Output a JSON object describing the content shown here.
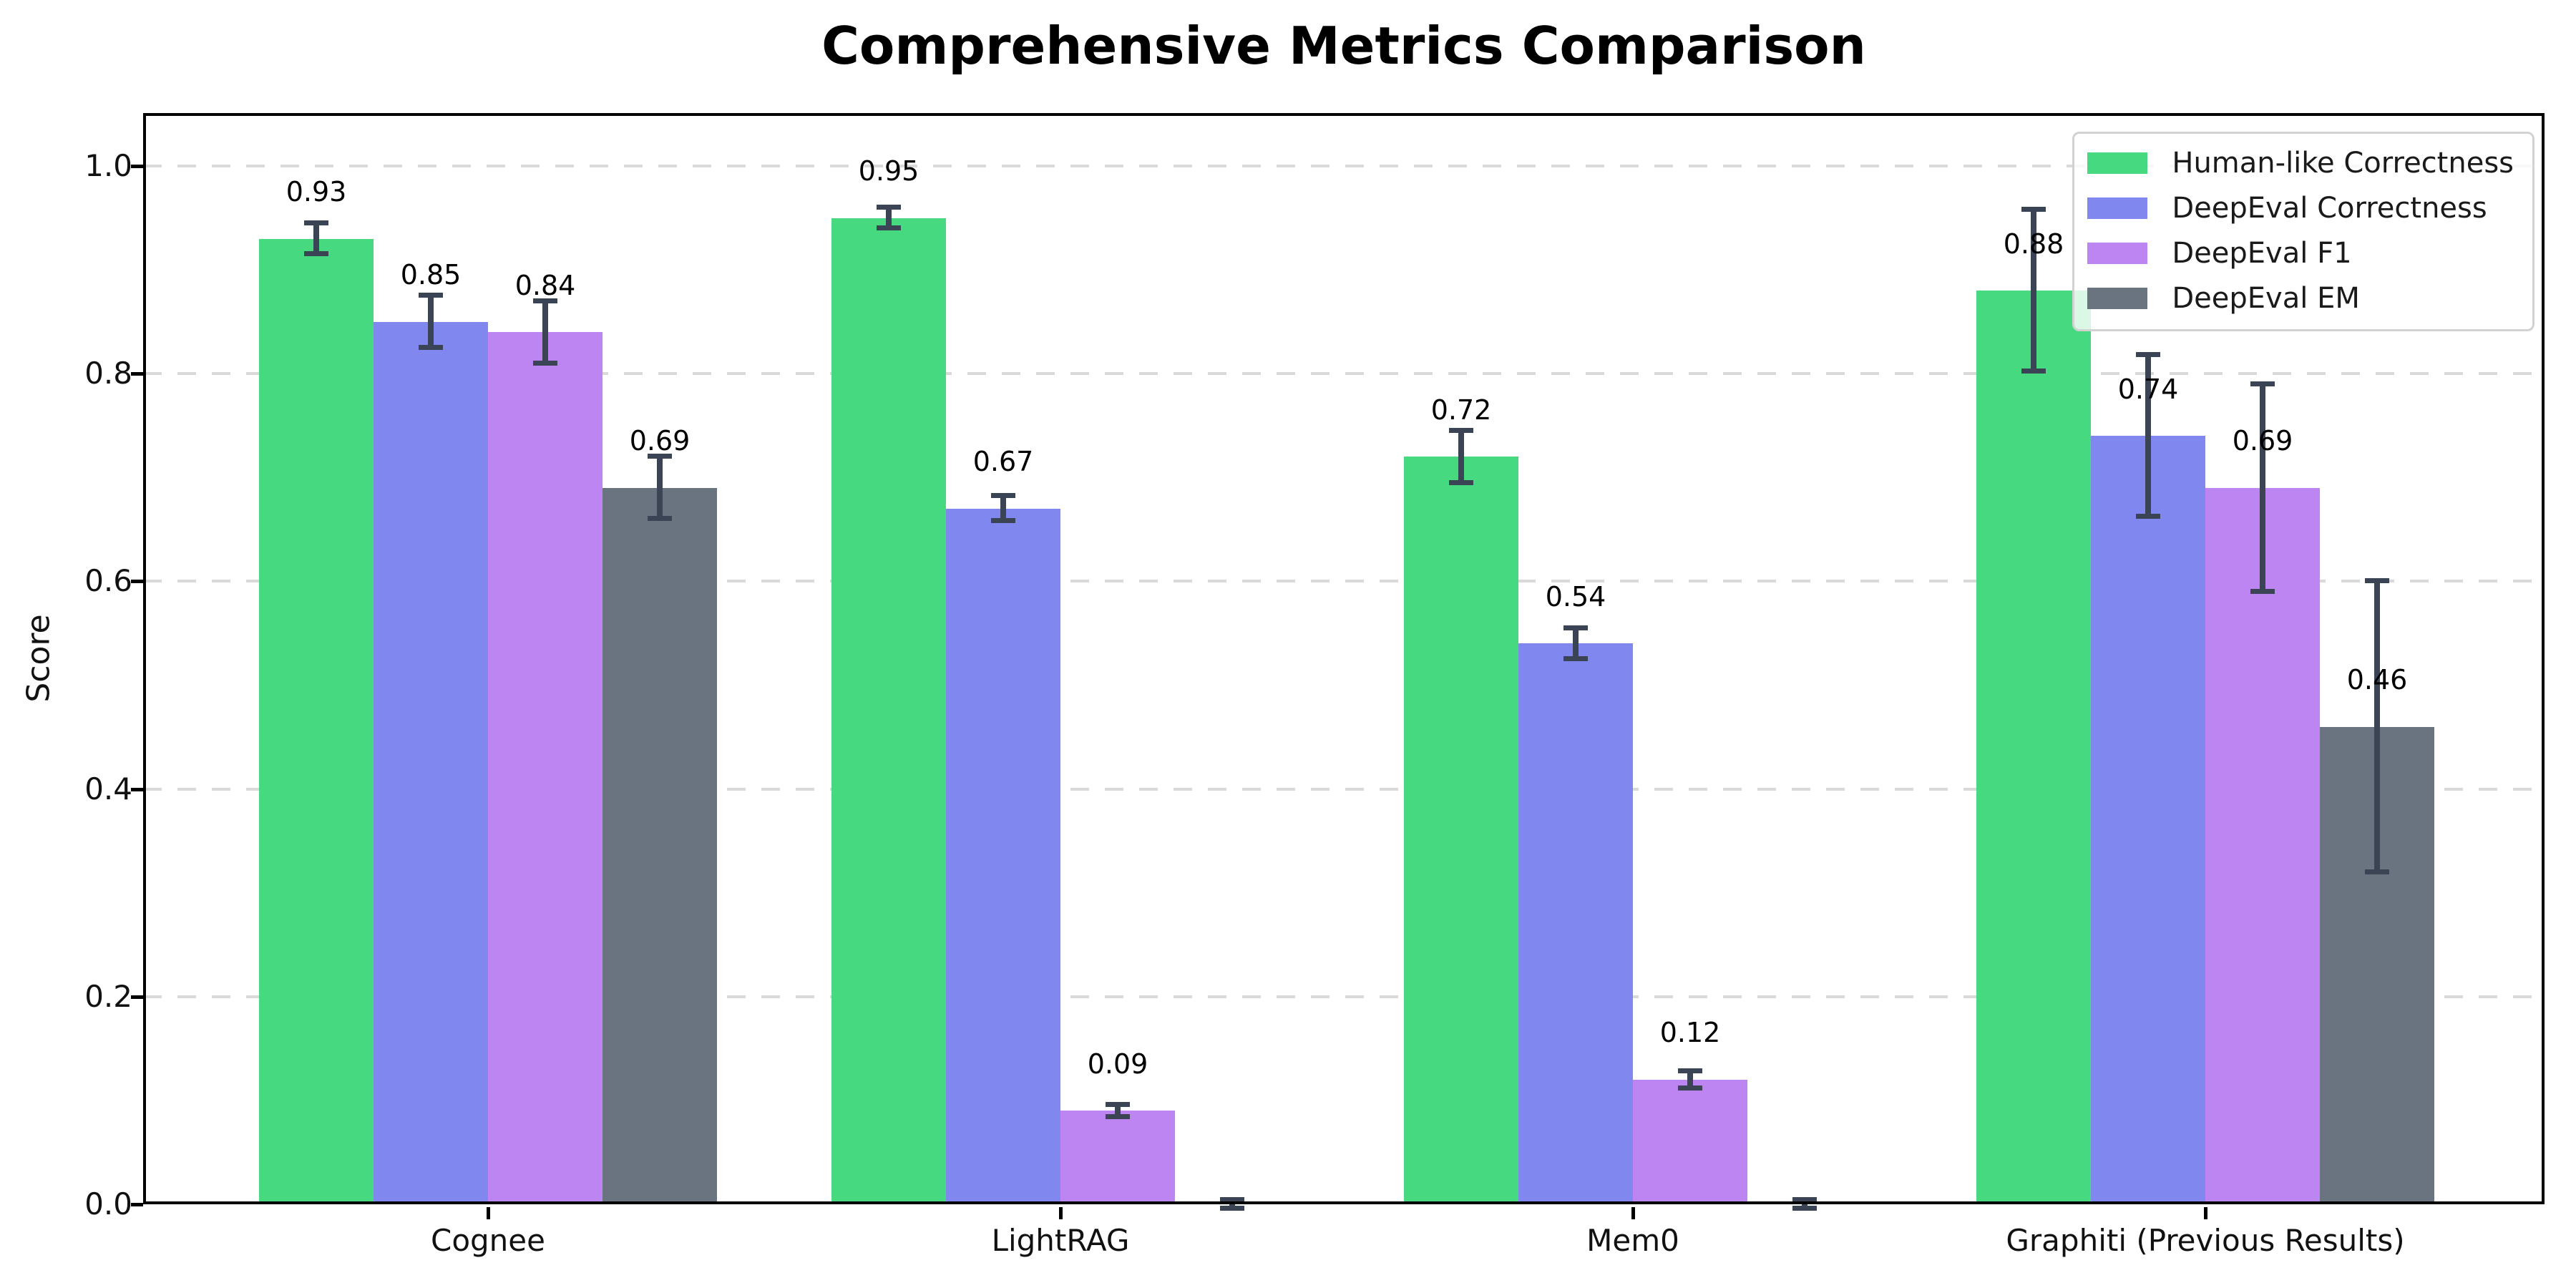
{
  "chart_data": {
    "type": "bar",
    "title": "Comprehensive Metrics Comparison",
    "ylabel": "Score",
    "xlabel": "",
    "categories": [
      "Cognee",
      "LightRAG",
      "Mem0",
      "Graphiti (Previous Results)"
    ],
    "series": [
      {
        "name": "Human-like Correctness",
        "color": "#47d97f",
        "values": [
          0.93,
          0.95,
          0.72,
          0.88
        ],
        "errors": [
          0.015,
          0.01,
          0.025,
          0.078
        ],
        "labels": [
          "0.93",
          "0.95",
          "0.72",
          "0.88"
        ]
      },
      {
        "name": "DeepEval Correctness",
        "color": "#8088ef",
        "values": [
          0.85,
          0.67,
          0.54,
          0.74
        ],
        "errors": [
          0.025,
          0.012,
          0.015,
          0.078
        ],
        "labels": [
          "0.85",
          "0.67",
          "0.54",
          "0.74"
        ]
      },
      {
        "name": "DeepEval F1",
        "color": "#bd85f2",
        "values": [
          0.84,
          0.09,
          0.12,
          0.69
        ],
        "errors": [
          0.03,
          0.006,
          0.008,
          0.1
        ],
        "labels": [
          "0.84",
          "0.09",
          "0.12",
          "0.69"
        ]
      },
      {
        "name": "DeepEval EM",
        "color": "#6a7380",
        "values": [
          0.69,
          0.0,
          0.0,
          0.46
        ],
        "errors": [
          0.03,
          0.004,
          0.004,
          0.14
        ],
        "labels": [
          "0.69",
          "",
          "",
          "0.46"
        ]
      }
    ],
    "y_ticks": [
      {
        "label": "0.0",
        "value": 0.0
      },
      {
        "label": "0.2",
        "value": 0.2
      },
      {
        "label": "0.4",
        "value": 0.4
      },
      {
        "label": "0.6",
        "value": 0.6
      },
      {
        "label": "0.8",
        "value": 0.8
      },
      {
        "label": "1.0",
        "value": 1.0
      }
    ],
    "ylim": [
      0,
      1.051
    ],
    "grid": "dashed-horizontal",
    "legend_position": "upper-right",
    "colors": {
      "error_bar": "#3b4454",
      "grid_line": "#d9d9d9",
      "axis": "#000000",
      "background": "#ffffff"
    }
  }
}
